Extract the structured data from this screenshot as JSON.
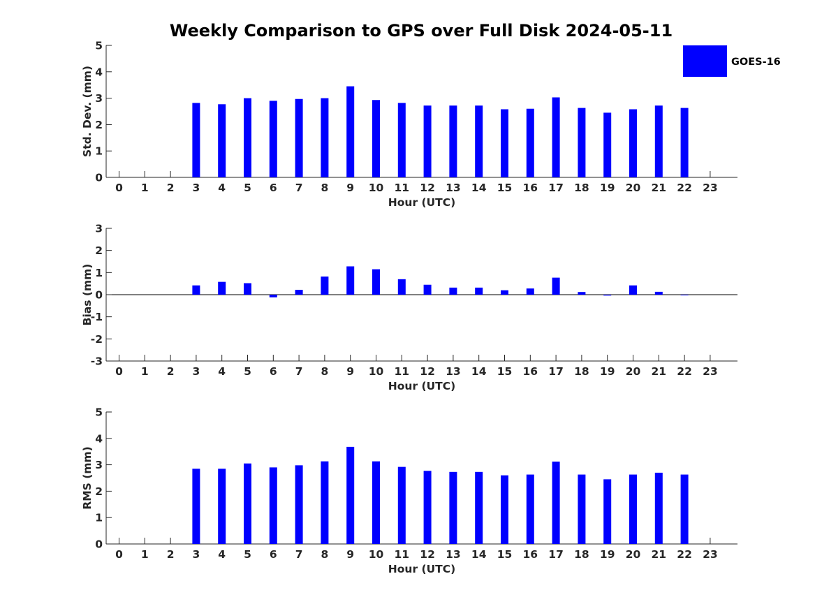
{
  "figure": {
    "title": "Weekly Comparison to GPS over Full Disk 2024-05-11",
    "legend": {
      "label": "GOES-16",
      "color": "#0000ff",
      "placement": "top-right"
    }
  },
  "chart_data": [
    {
      "type": "bar",
      "id": "std",
      "title": "",
      "xlabel": "Hour (UTC)",
      "ylabel": "Std. Dev. (mm)",
      "ylim": [
        0,
        5
      ],
      "yticks": [
        "0",
        "1",
        "2",
        "3",
        "4",
        "5"
      ],
      "categories": [
        "0",
        "1",
        "2",
        "3",
        "4",
        "5",
        "6",
        "7",
        "8",
        "9",
        "10",
        "11",
        "12",
        "13",
        "14",
        "15",
        "16",
        "17",
        "18",
        "19",
        "20",
        "21",
        "22",
        "23"
      ],
      "series": [
        {
          "name": "GOES-16",
          "color": "#0000ff",
          "values": [
            null,
            null,
            null,
            2.82,
            2.77,
            3.0,
            2.9,
            2.97,
            3.0,
            3.45,
            2.93,
            2.82,
            2.72,
            2.72,
            2.72,
            2.58,
            2.6,
            3.03,
            2.63,
            2.45,
            2.58,
            2.72,
            2.63,
            null
          ]
        }
      ]
    },
    {
      "type": "bar",
      "id": "bias",
      "title": "",
      "xlabel": "Hour (UTC)",
      "ylabel": "Bias (mm)",
      "ylim": [
        -3,
        3
      ],
      "yticks": [
        "-3",
        "-2",
        "-1",
        "0",
        "1",
        "2",
        "3"
      ],
      "categories": [
        "0",
        "1",
        "2",
        "3",
        "4",
        "5",
        "6",
        "7",
        "8",
        "9",
        "10",
        "11",
        "12",
        "13",
        "14",
        "15",
        "16",
        "17",
        "18",
        "19",
        "20",
        "21",
        "22",
        "23"
      ],
      "series": [
        {
          "name": "GOES-16",
          "color": "#0000ff",
          "values": [
            null,
            null,
            null,
            0.42,
            0.58,
            0.52,
            -0.12,
            0.22,
            0.82,
            1.28,
            1.15,
            0.7,
            0.45,
            0.32,
            0.32,
            0.2,
            0.28,
            0.77,
            0.12,
            -0.04,
            0.42,
            0.13,
            -0.03,
            null
          ]
        }
      ]
    },
    {
      "type": "bar",
      "id": "rms",
      "title": "",
      "xlabel": "Hour (UTC)",
      "ylabel": "RMS (mm)",
      "ylim": [
        0,
        5
      ],
      "yticks": [
        "0",
        "1",
        "2",
        "3",
        "4",
        "5"
      ],
      "categories": [
        "0",
        "1",
        "2",
        "3",
        "4",
        "5",
        "6",
        "7",
        "8",
        "9",
        "10",
        "11",
        "12",
        "13",
        "14",
        "15",
        "16",
        "17",
        "18",
        "19",
        "20",
        "21",
        "22",
        "23"
      ],
      "series": [
        {
          "name": "GOES-16",
          "color": "#0000ff",
          "values": [
            null,
            null,
            null,
            2.85,
            2.85,
            3.05,
            2.9,
            2.98,
            3.13,
            3.68,
            3.13,
            2.92,
            2.77,
            2.73,
            2.73,
            2.6,
            2.63,
            3.12,
            2.63,
            2.45,
            2.63,
            2.7,
            2.63,
            null
          ]
        }
      ]
    }
  ]
}
